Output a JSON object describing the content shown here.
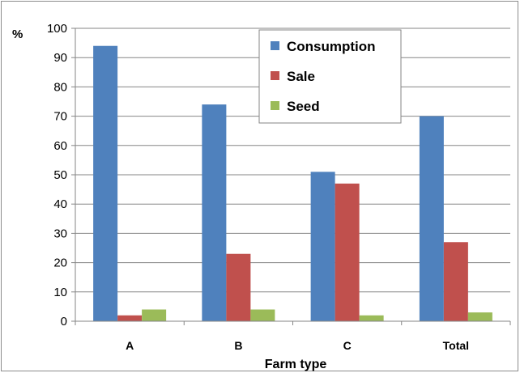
{
  "chart_data": {
    "type": "bar",
    "categories": [
      "A",
      "B",
      "C",
      "Total"
    ],
    "series": [
      {
        "name": "Consumption",
        "color": "#4F81BD",
        "values": [
          94,
          74,
          51,
          70
        ]
      },
      {
        "name": "Sale",
        "color": "#C0504D",
        "values": [
          2,
          23,
          47,
          27
        ]
      },
      {
        "name": "Seed",
        "color": "#9BBB59",
        "values": [
          4,
          4,
          2,
          3
        ]
      }
    ],
    "xlabel": "Farm type",
    "ylabel": "%",
    "ylim": [
      0,
      100
    ],
    "yticks": [
      "0",
      "10",
      "20",
      "30",
      "40",
      "50",
      "60",
      "70",
      "80",
      "90",
      "100"
    ],
    "grid": true,
    "legend_position": "top-center"
  }
}
